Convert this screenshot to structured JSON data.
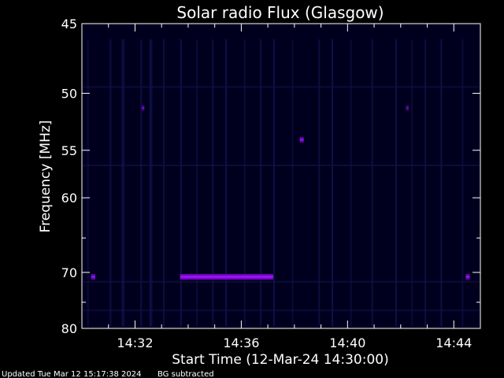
{
  "chart_data": {
    "type": "heatmap",
    "title": "Solar radio Flux (Glasgow)",
    "xlabel": "Start Time (12-Mar-24 14:30:00)",
    "ylabel": "Frequency [MHz]",
    "x_range_minutes": [
      0,
      15
    ],
    "x_ticks": [
      {
        "value": 2,
        "label": "14:32"
      },
      {
        "value": 6,
        "label": "14:36"
      },
      {
        "value": 10,
        "label": "14:40"
      },
      {
        "value": 14,
        "label": "14:44"
      }
    ],
    "y_scale": "reciprocal",
    "y_range": [
      45,
      80
    ],
    "y_ticks": [
      {
        "value": 45,
        "label": "45"
      },
      {
        "value": 50,
        "label": "50"
      },
      {
        "value": 55,
        "label": "55"
      },
      {
        "value": 60,
        "label": "60"
      },
      {
        "value": 70,
        "label": "70"
      },
      {
        "value": 80,
        "label": "80"
      }
    ],
    "y_minor_ticks": [
      65,
      75
    ],
    "colors": {
      "background": "#000000",
      "panel": "#00001e",
      "axes": "#ffffff",
      "signal": "#7a00c8",
      "faint": "#121250"
    },
    "bright_features": [
      {
        "name": "70 MHz band",
        "t_start": 3.7,
        "t_end": 7.2,
        "freq": 70.7,
        "intensity": 1.0
      },
      {
        "name": "70 MHz left spot",
        "t_start": 0.35,
        "t_end": 0.5,
        "freq": 70.7,
        "intensity": 0.85
      },
      {
        "name": "70 MHz right spot",
        "t_start": 14.45,
        "t_end": 14.6,
        "freq": 70.7,
        "intensity": 0.85
      },
      {
        "name": "54 MHz spot",
        "t_start": 8.2,
        "t_end": 8.35,
        "freq": 54.0,
        "intensity": 0.8
      },
      {
        "name": "51 MHz spot left",
        "t_start": 2.25,
        "t_end": 2.35,
        "freq": 51.2,
        "intensity": 0.55
      },
      {
        "name": "51 MHz spot right",
        "t_start": 12.2,
        "t_end": 12.3,
        "freq": 51.2,
        "intensity": 0.5
      }
    ],
    "vertical_streaks_minutes": [
      0.2,
      1.05,
      1.5,
      1.55,
      2.2,
      2.55,
      2.6,
      3.05,
      3.7,
      4.3,
      4.9,
      5.4,
      6.1,
      6.7,
      7.2,
      7.9,
      8.9,
      9.4,
      10.1,
      10.9,
      11.8,
      12.4,
      12.9,
      13.5,
      14.3
    ],
    "horizontal_streaks_mhz": [
      49.5,
      56.5,
      71.5,
      76.5
    ]
  },
  "footer": {
    "updated": "Updated Tue Mar 12 15:17:38 2024",
    "bg_note": "BG subtracted"
  }
}
